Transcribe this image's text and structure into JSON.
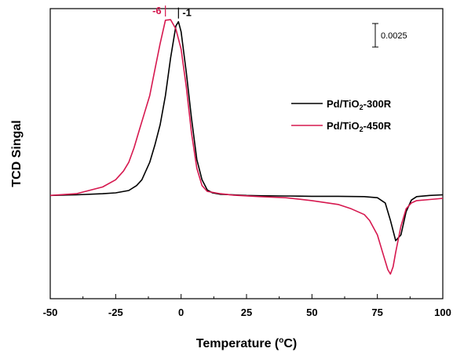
{
  "chart_data": {
    "type": "line",
    "xlabel": "Temperature (°C)",
    "xlabel_parts": {
      "prefix": "Temperature (",
      "sup": "o",
      "suffix": "C)"
    },
    "ylabel": "TCD Singal",
    "xlim": [
      -50,
      100
    ],
    "xticks": [
      -50,
      -25,
      0,
      25,
      50,
      75,
      100
    ],
    "ylim": [
      0,
      1
    ],
    "y_ticks_labeled": false,
    "scale_bar": {
      "label": "0.0025"
    },
    "legend": {
      "placement": "top-right"
    },
    "peak_annotations": [
      {
        "text": "-6",
        "x": -6,
        "color": "#d6184f"
      },
      {
        "text": "-1",
        "x": -1,
        "color": "#000000"
      }
    ],
    "series": [
      {
        "name": "Pd/TiO2-300R",
        "label_parts": {
          "prefix": "Pd/TiO",
          "sub": "2",
          "suffix": "-300R"
        },
        "color": "#000000",
        "x": [
          -50,
          -40,
          -30,
          -25,
          -20,
          -17,
          -15,
          -12,
          -10,
          -8,
          -6,
          -4,
          -2,
          -1,
          0,
          2,
          4,
          6,
          8,
          10,
          12,
          15,
          20,
          25,
          30,
          40,
          50,
          60,
          70,
          75,
          78,
          80,
          82,
          84,
          86,
          88,
          90,
          95,
          100
        ],
        "y": [
          0.356,
          0.358,
          0.362,
          0.365,
          0.373,
          0.39,
          0.41,
          0.47,
          0.53,
          0.6,
          0.7,
          0.83,
          0.94,
          0.955,
          0.92,
          0.78,
          0.62,
          0.48,
          0.41,
          0.375,
          0.365,
          0.36,
          0.358,
          0.356,
          0.355,
          0.354,
          0.353,
          0.353,
          0.352,
          0.348,
          0.33,
          0.27,
          0.2,
          0.22,
          0.3,
          0.34,
          0.352,
          0.356,
          0.358
        ]
      },
      {
        "name": "Pd/TiO2-450R",
        "label_parts": {
          "prefix": "Pd/TiO",
          "sub": "2",
          "suffix": "-450R"
        },
        "color": "#d6184f",
        "x": [
          -50,
          -40,
          -30,
          -25,
          -22,
          -20,
          -18,
          -16,
          -14,
          -12,
          -10,
          -8,
          -6,
          -4,
          -2,
          0,
          2,
          4,
          6,
          8,
          10,
          15,
          20,
          30,
          40,
          50,
          60,
          65,
          70,
          72,
          75,
          77,
          79,
          80,
          81,
          82,
          84,
          86,
          88,
          90,
          95,
          100
        ],
        "y": [
          0.356,
          0.362,
          0.385,
          0.41,
          0.44,
          0.47,
          0.52,
          0.58,
          0.64,
          0.7,
          0.79,
          0.88,
          0.96,
          0.962,
          0.93,
          0.86,
          0.73,
          0.57,
          0.45,
          0.39,
          0.37,
          0.362,
          0.357,
          0.352,
          0.348,
          0.338,
          0.325,
          0.31,
          0.29,
          0.27,
          0.22,
          0.16,
          0.1,
          0.085,
          0.11,
          0.16,
          0.25,
          0.31,
          0.33,
          0.338,
          0.342,
          0.346
        ]
      }
    ]
  }
}
